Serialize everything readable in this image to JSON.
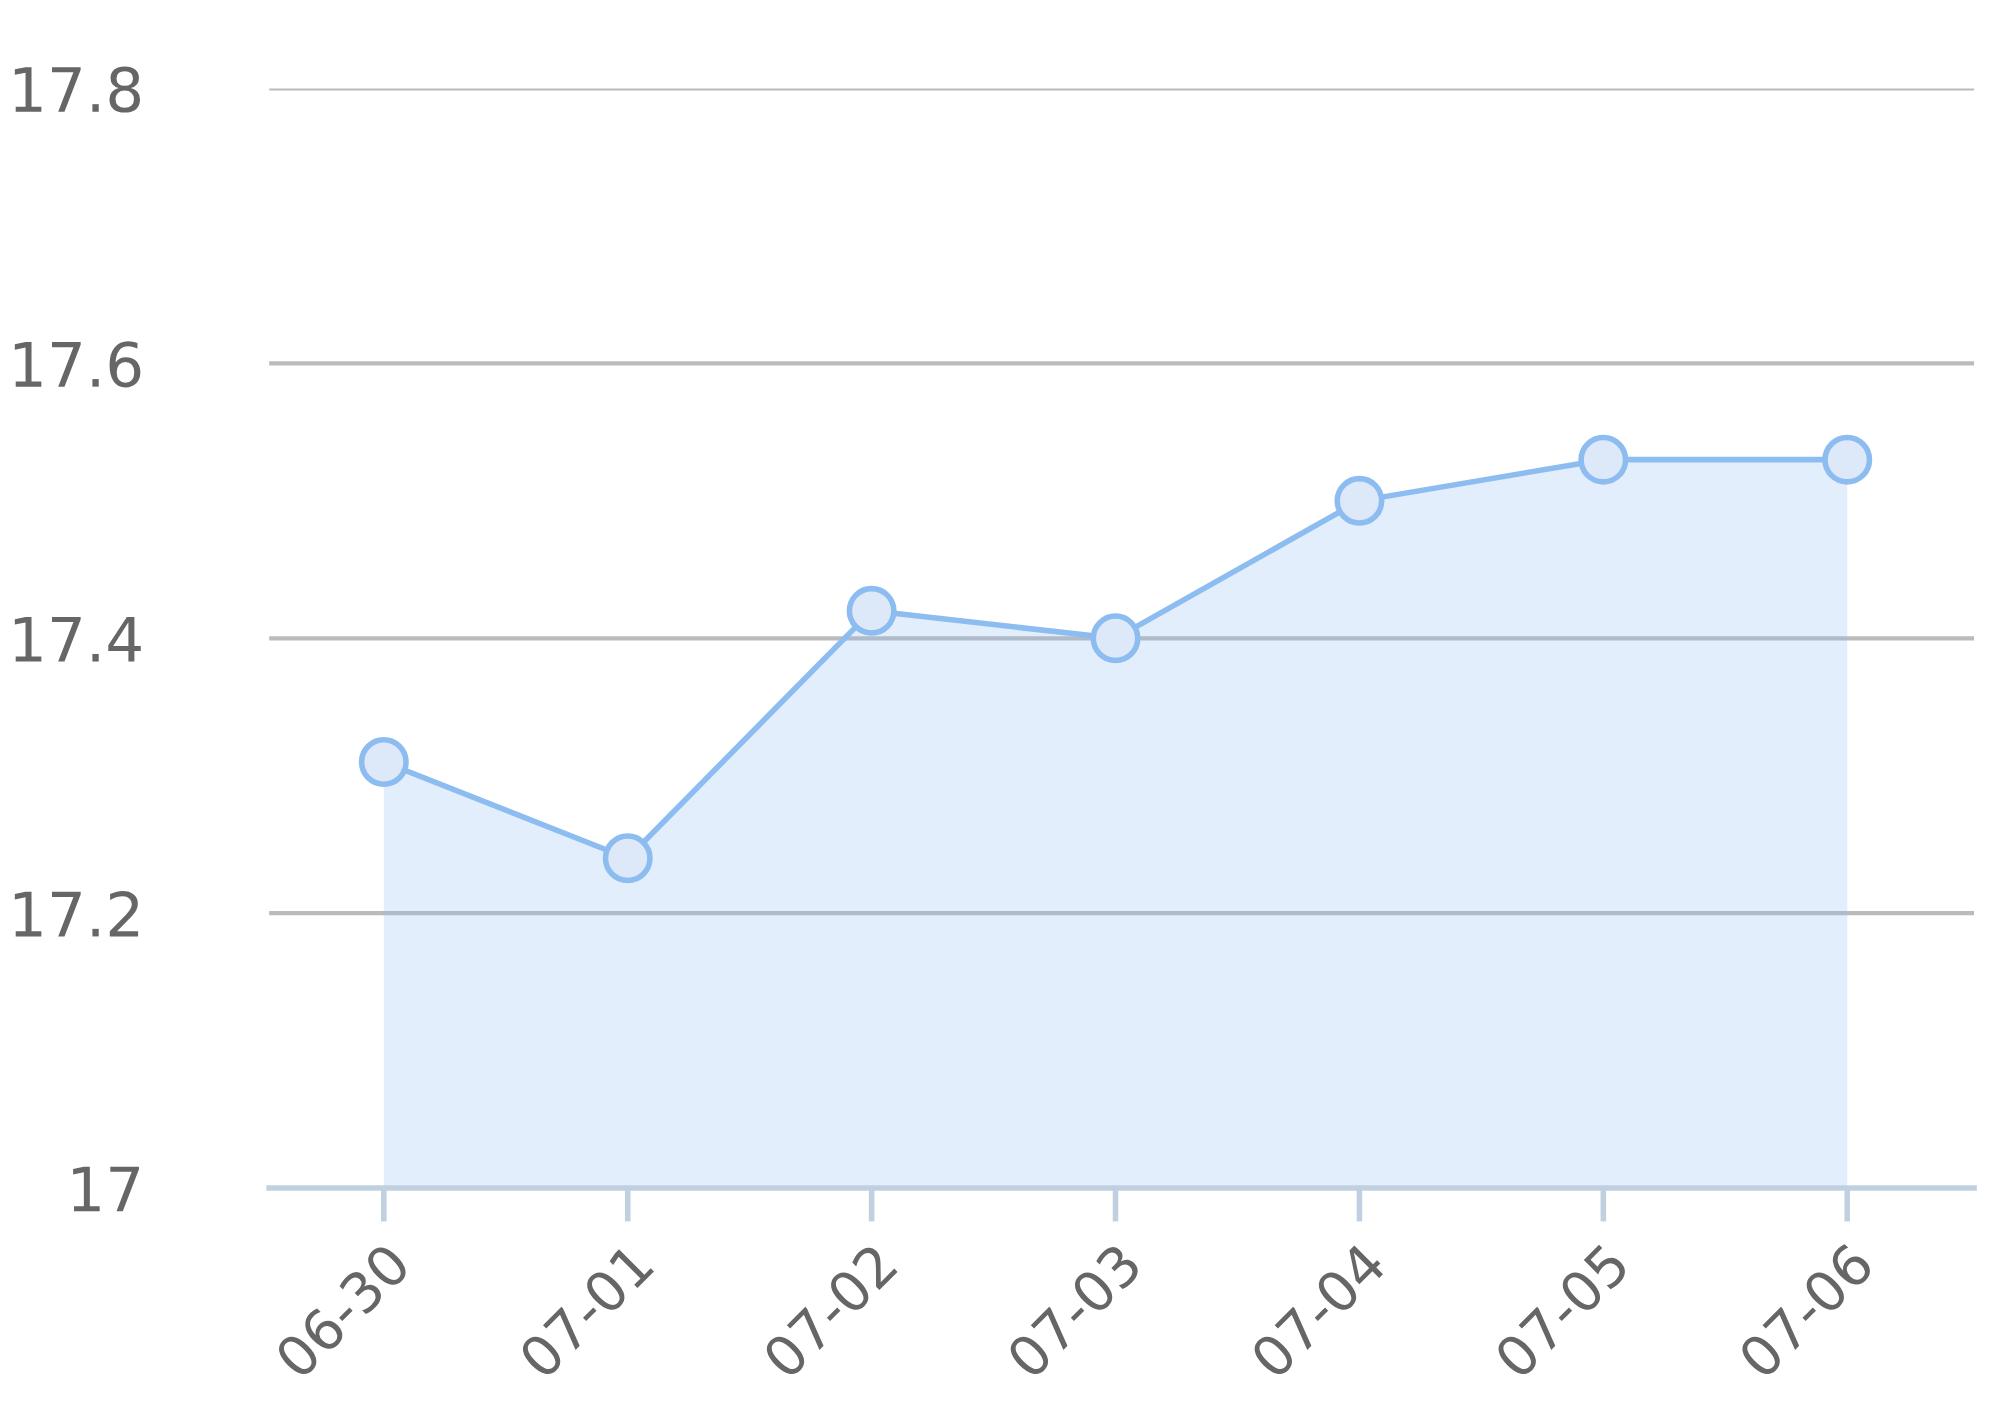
{
  "chart_data": {
    "type": "area",
    "categories": [
      "06-30",
      "07-01",
      "07-02",
      "07-03",
      "07-04",
      "07-05",
      "07-06"
    ],
    "values": [
      17.31,
      17.24,
      17.42,
      17.4,
      17.5,
      17.53,
      17.53
    ],
    "color": "#8cbcf0",
    "ylim": [
      17,
      17.8
    ],
    "yticks": [
      17,
      17.2,
      17.4,
      17.6,
      17.8
    ],
    "grid": "y",
    "marker": "circle"
  }
}
